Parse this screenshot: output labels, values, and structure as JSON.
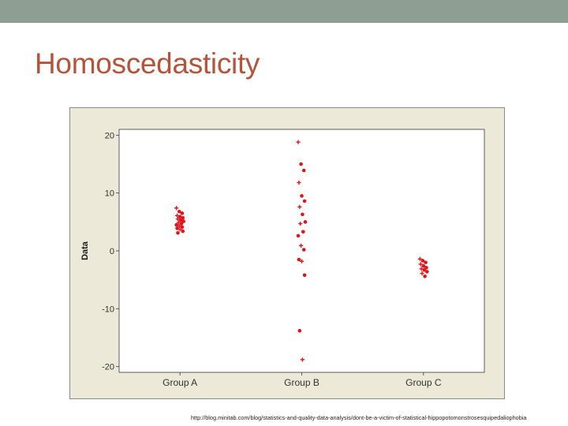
{
  "slide": {
    "title": "Homoscedasticity",
    "source": "http://blog.minitab.com/blog/statistics-and-quality-data-analysis/dont-be-a-victim-of-statistical-hippopotomonstrosesquipedaliophobia"
  },
  "colors": {
    "top_bar": "#8f9e93",
    "title": "#b5533b",
    "frame_background": "#ece9d8",
    "points": "#e0151b"
  },
  "chart_data": {
    "type": "scatter",
    "title": "",
    "xlabel": "",
    "ylabel": "Data",
    "categories": [
      "Group A",
      "Group B",
      "Group C"
    ],
    "ylim": [
      -21,
      21
    ],
    "yticks": [
      20,
      10,
      0,
      -10,
      -20
    ],
    "ytick_labels": [
      "20",
      "10",
      "0",
      "-10",
      "-20"
    ],
    "grid": false,
    "legend": "none",
    "series": [
      {
        "category": "Group A",
        "values": [
          7.4,
          6.8,
          6.5,
          6.1,
          5.9,
          5.7,
          5.5,
          5.3,
          5.1,
          4.9,
          4.7,
          4.5,
          4.3,
          4.1,
          3.9,
          3.7,
          3.4,
          3.1
        ]
      },
      {
        "category": "Group B",
        "values": [
          18.8,
          15.0,
          13.9,
          11.8,
          9.5,
          8.6,
          7.6,
          6.3,
          5.0,
          4.7,
          3.3,
          2.6,
          0.9,
          0.2,
          -1.5,
          -1.8,
          -4.2,
          -13.8,
          -18.8
        ]
      },
      {
        "category": "Group C",
        "values": [
          -1.4,
          -1.7,
          -2.0,
          -2.3,
          -2.6,
          -2.9,
          -3.1,
          -3.3,
          -3.6,
          -3.9,
          -4.4
        ]
      }
    ]
  }
}
